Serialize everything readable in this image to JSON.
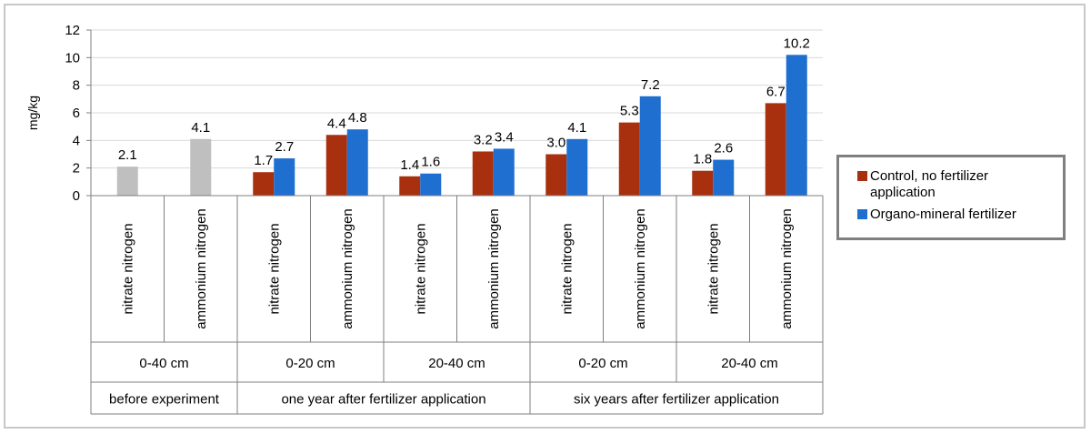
{
  "chart_data": {
    "type": "bar",
    "ylabel": "mg/kg",
    "ylim": [
      0,
      12
    ],
    "yticks": [
      "0",
      "2",
      "4",
      "6",
      "8",
      "10",
      "12"
    ],
    "grid": true,
    "legend_position": "right",
    "colors": {
      "baseline": "#bfbfbf",
      "control": "#a8300f",
      "fertilizer": "#1f6fd1"
    },
    "categories": [
      "nitrate nitrogen",
      "ammonium nitrogen",
      "nitrate nitrogen",
      "ammonium nitrogen",
      "nitrate nitrogen",
      "ammonium nitrogen",
      "nitrate nitrogen",
      "ammonium nitrogen",
      "nitrate nitrogen",
      "ammonium nitrogen"
    ],
    "depth_groups": [
      {
        "label": "0-40 cm",
        "span": 2
      },
      {
        "label": "0-20 cm",
        "span": 2
      },
      {
        "label": "20-40 cm",
        "span": 2
      },
      {
        "label": "0-20 cm",
        "span": 2
      },
      {
        "label": "20-40 cm",
        "span": 2
      }
    ],
    "period_groups": [
      {
        "label": "before experiment",
        "span": 2
      },
      {
        "label": "one year after fertilizer application",
        "span": 4
      },
      {
        "label": "six years after fertilizer application",
        "span": 4
      }
    ],
    "baseline": {
      "name": "Before experiment",
      "values": [
        2.1,
        4.1,
        null,
        null,
        null,
        null,
        null,
        null,
        null,
        null
      ],
      "labels": [
        "2.1",
        "4.1",
        null,
        null,
        null,
        null,
        null,
        null,
        null,
        null
      ]
    },
    "series": [
      {
        "name": "Control, no fertilizer application",
        "values": [
          null,
          null,
          1.7,
          4.4,
          1.4,
          3.2,
          3.0,
          5.3,
          1.8,
          6.7
        ],
        "labels": [
          null,
          null,
          "1.7",
          "4.4",
          "1.4",
          "3.2",
          "3.0",
          "5.3",
          "1.8",
          "6.7"
        ]
      },
      {
        "name": "Organo-mineral fertilizer",
        "values": [
          null,
          null,
          2.7,
          4.8,
          1.6,
          3.4,
          4.1,
          7.2,
          2.6,
          10.2
        ],
        "labels": [
          null,
          null,
          "2.7",
          "4.8",
          "1.6",
          "3.4",
          "4.1",
          "7.2",
          "2.6",
          "10.2"
        ]
      }
    ]
  }
}
